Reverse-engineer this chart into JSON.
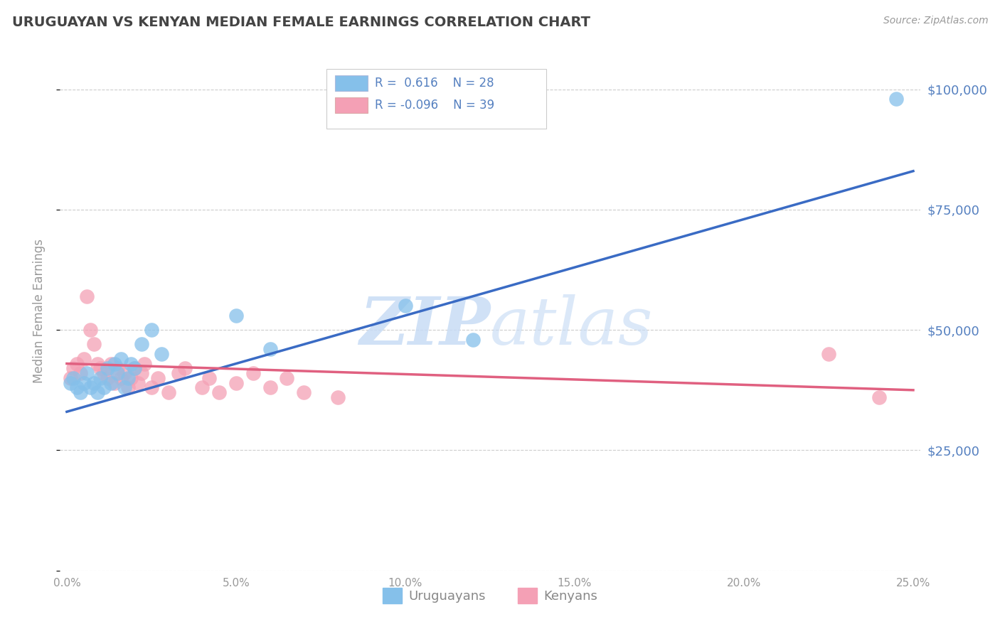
{
  "title": "URUGUAYAN VS KENYAN MEDIAN FEMALE EARNINGS CORRELATION CHART",
  "source": "Source: ZipAtlas.com",
  "ylabel": "Median Female Earnings",
  "xlabel_ticks": [
    "0.0%",
    "5.0%",
    "10.0%",
    "15.0%",
    "20.0%",
    "25.0%"
  ],
  "xlabel_vals": [
    0.0,
    0.05,
    0.1,
    0.15,
    0.2,
    0.25
  ],
  "ylabel_ticks": [
    0,
    25000,
    50000,
    75000,
    100000
  ],
  "ylabel_labels": [
    "",
    "$25,000",
    "$50,000",
    "$75,000",
    "$100,000"
  ],
  "xlim": [
    -0.002,
    0.252
  ],
  "ylim": [
    5000,
    108000
  ],
  "uruguayan_color": "#85C0EA",
  "kenyan_color": "#F4A0B5",
  "line_blue": "#3A6BC4",
  "line_pink": "#E06080",
  "watermark_zip": "ZIP",
  "watermark_atlas": "atlas",
  "bg_color": "#FFFFFF",
  "grid_color": "#CCCCCC",
  "title_color": "#444444",
  "axis_label_color": "#5580C0",
  "uruguayan_x": [
    0.001,
    0.002,
    0.003,
    0.004,
    0.005,
    0.006,
    0.007,
    0.008,
    0.009,
    0.01,
    0.011,
    0.012,
    0.013,
    0.014,
    0.015,
    0.016,
    0.017,
    0.018,
    0.019,
    0.02,
    0.022,
    0.025,
    0.028,
    0.05,
    0.06,
    0.1,
    0.12,
    0.245
  ],
  "uruguayan_y": [
    39000,
    40000,
    38000,
    37000,
    39000,
    41000,
    38000,
    39000,
    37000,
    40000,
    38000,
    42000,
    39000,
    43000,
    41000,
    44000,
    38000,
    40000,
    43000,
    42000,
    47000,
    50000,
    45000,
    53000,
    46000,
    55000,
    48000,
    98000
  ],
  "kenyan_x": [
    0.001,
    0.002,
    0.003,
    0.004,
    0.005,
    0.006,
    0.007,
    0.008,
    0.009,
    0.01,
    0.011,
    0.012,
    0.013,
    0.014,
    0.015,
    0.016,
    0.017,
    0.018,
    0.019,
    0.02,
    0.021,
    0.022,
    0.023,
    0.025,
    0.027,
    0.03,
    0.033,
    0.035,
    0.04,
    0.042,
    0.045,
    0.05,
    0.055,
    0.06,
    0.065,
    0.07,
    0.08,
    0.225,
    0.24
  ],
  "kenyan_y": [
    40000,
    42000,
    43000,
    41000,
    44000,
    57000,
    50000,
    47000,
    43000,
    42000,
    41000,
    40000,
    43000,
    39000,
    42000,
    40000,
    41000,
    38000,
    40000,
    42000,
    39000,
    41000,
    43000,
    38000,
    40000,
    37000,
    41000,
    42000,
    38000,
    40000,
    37000,
    39000,
    41000,
    38000,
    40000,
    37000,
    36000,
    45000,
    36000
  ],
  "blue_line_x0": 0.0,
  "blue_line_y0": 33000,
  "blue_line_x1": 0.25,
  "blue_line_y1": 83000,
  "pink_line_x0": 0.0,
  "pink_line_y0": 43000,
  "pink_line_x1": 0.25,
  "pink_line_y1": 37500
}
